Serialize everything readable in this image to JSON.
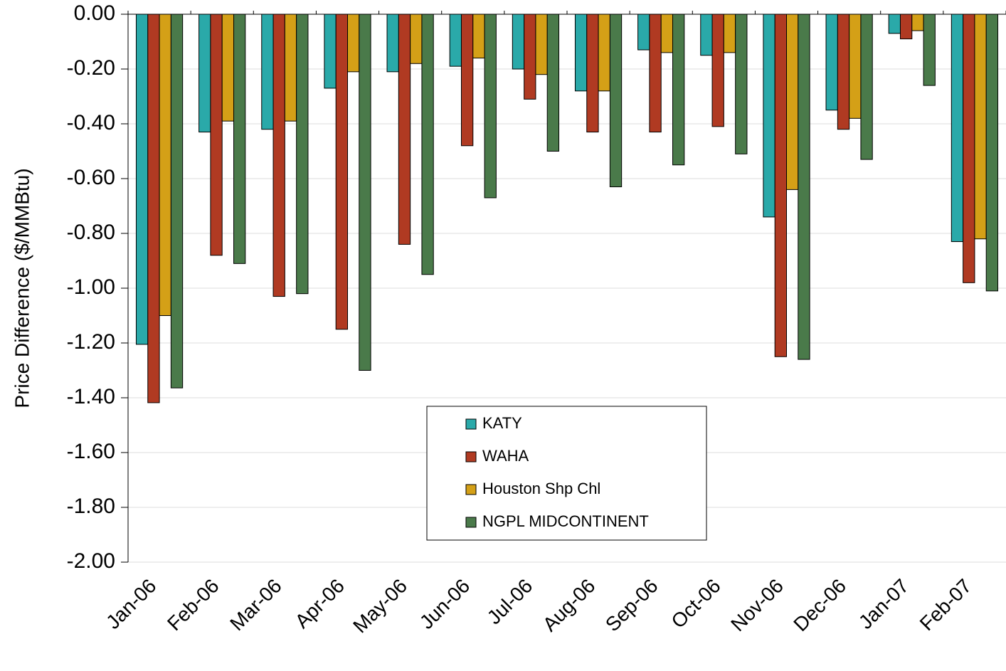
{
  "chart_data": {
    "type": "bar",
    "y_axis_label": "Price Difference ($/MMBtu)",
    "categories": [
      "Jan-06",
      "Feb-06",
      "Mar-06",
      "Apr-06",
      "May-06",
      "Jun-06",
      "Jul-06",
      "Aug-06",
      "Sep-06",
      "Oct-06",
      "Nov-06",
      "Dec-06",
      "Jan-07",
      "Feb-07"
    ],
    "series": [
      {
        "name": "KATY",
        "color": "#2aa9a9",
        "values": [
          -1.205,
          -0.43,
          -0.42,
          -0.27,
          -0.21,
          -0.19,
          -0.2,
          -0.28,
          -0.13,
          -0.15,
          -0.74,
          -0.35,
          -0.07,
          -0.83
        ]
      },
      {
        "name": "WAHA",
        "color": "#b03a22",
        "values": [
          -1.418,
          -0.88,
          -1.03,
          -1.15,
          -0.84,
          -0.48,
          -0.31,
          -0.43,
          -0.43,
          -0.41,
          -1.25,
          -0.42,
          -0.09,
          -0.98
        ]
      },
      {
        "name": "Houston Shp Chl",
        "color": "#d4a017",
        "values": [
          -1.1,
          -0.39,
          -0.39,
          -0.21,
          -0.18,
          -0.16,
          -0.22,
          -0.28,
          -0.14,
          -0.14,
          -0.64,
          -0.38,
          -0.06,
          -0.82
        ]
      },
      {
        "name": "NGPL MIDCONTINENT",
        "color": "#4a7a4a",
        "values": [
          -1.364,
          -0.91,
          -1.02,
          -1.3,
          -0.95,
          -0.67,
          -0.5,
          -0.63,
          -0.55,
          -0.51,
          -1.26,
          -0.53,
          -0.26,
          -1.01
        ]
      }
    ],
    "ylim": [
      -2,
      0
    ],
    "yticks": [
      {
        "value": 0,
        "label": "0.00"
      },
      {
        "value": -0.2,
        "label": "-0.20"
      },
      {
        "value": -0.4,
        "label": "-0.40"
      },
      {
        "value": -0.6,
        "label": "-0.60"
      },
      {
        "value": -0.8,
        "label": "-0.80"
      },
      {
        "value": -1,
        "label": "-1.00"
      },
      {
        "value": -1.2,
        "label": "-1.20"
      },
      {
        "value": -1.4,
        "label": "-1.40"
      },
      {
        "value": -1.6,
        "label": "-1.60"
      },
      {
        "value": -1.8,
        "label": "-1.80"
      },
      {
        "value": -2,
        "label": "-2.00"
      }
    ],
    "grid": true,
    "legend": "lower center"
  }
}
